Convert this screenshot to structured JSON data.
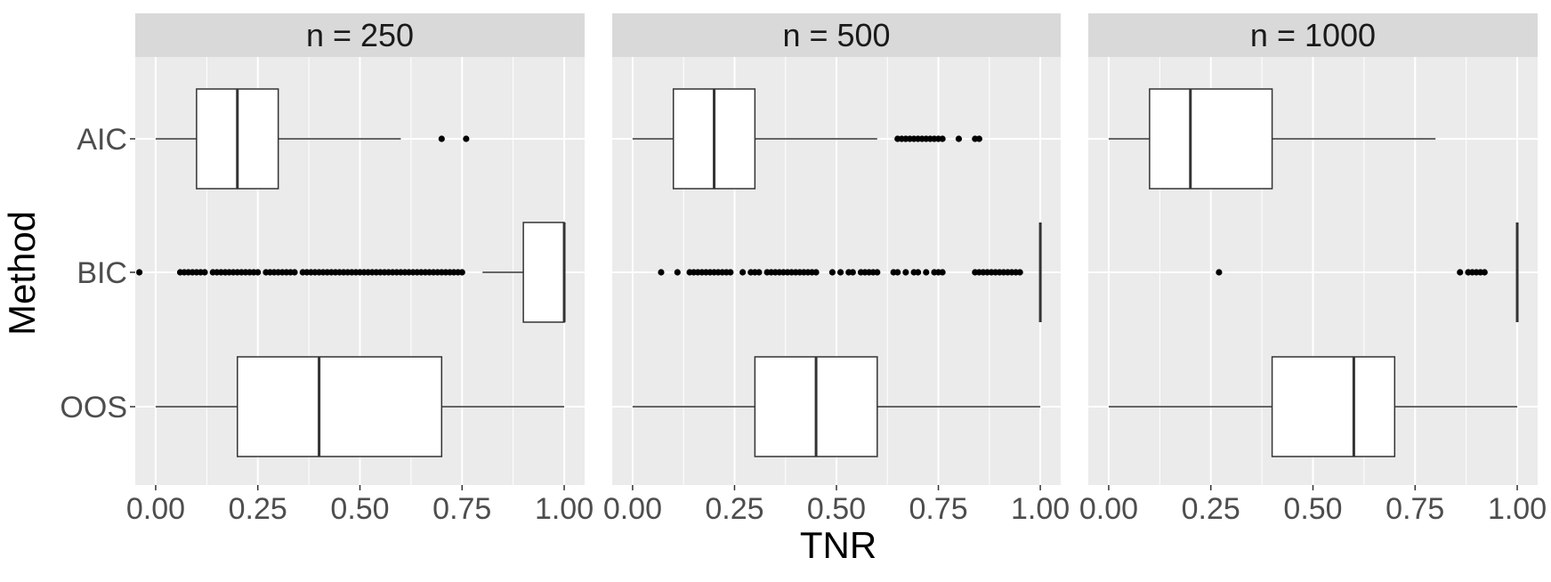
{
  "chart_data": {
    "type": "boxplot",
    "xlabel": "TNR",
    "ylabel": "Method",
    "categories": [
      "AIC",
      "BIC",
      "OOS"
    ],
    "xlim": [
      -0.05,
      1.05
    ],
    "x_ticks": [
      0.0,
      0.25,
      0.5,
      0.75,
      1.0
    ],
    "x_tick_labels": [
      "0.00",
      "0.25",
      "0.50",
      "0.75",
      "1.00"
    ],
    "grid": true,
    "facets": [
      {
        "label": "n = 250",
        "boxes": [
          {
            "method": "AIC",
            "whisker_low": 0.0,
            "q1": 0.1,
            "median": 0.2,
            "q3": 0.3,
            "whisker_high": 0.6,
            "outliers": [
              0.7,
              0.76
            ]
          },
          {
            "method": "BIC",
            "whisker_low": 0.8,
            "q1": 0.9,
            "median": 1.0,
            "q3": 1.0,
            "whisker_high": 1.0,
            "outliers": [
              -0.04,
              0.06,
              0.07,
              0.08,
              0.09,
              0.1,
              0.11,
              0.12,
              0.14,
              0.15,
              0.16,
              0.17,
              0.18,
              0.19,
              0.2,
              0.21,
              0.22,
              0.23,
              0.24,
              0.25,
              0.27,
              0.28,
              0.29,
              0.3,
              0.31,
              0.32,
              0.33,
              0.34,
              0.36,
              0.37,
              0.38,
              0.39,
              0.4,
              0.41,
              0.42,
              0.43,
              0.44,
              0.45,
              0.46,
              0.47,
              0.48,
              0.49,
              0.5,
              0.51,
              0.52,
              0.53,
              0.54,
              0.55,
              0.56,
              0.57,
              0.58,
              0.59,
              0.6,
              0.61,
              0.62,
              0.63,
              0.64,
              0.65,
              0.66,
              0.67,
              0.68,
              0.69,
              0.7,
              0.71,
              0.72,
              0.73,
              0.74,
              0.75
            ]
          },
          {
            "method": "OOS",
            "whisker_low": 0.0,
            "q1": 0.2,
            "median": 0.4,
            "q3": 0.7,
            "whisker_high": 1.0,
            "outliers": []
          }
        ]
      },
      {
        "label": "n = 500",
        "boxes": [
          {
            "method": "AIC",
            "whisker_low": 0.0,
            "q1": 0.1,
            "median": 0.2,
            "q3": 0.3,
            "whisker_high": 0.6,
            "outliers": [
              0.65,
              0.66,
              0.67,
              0.68,
              0.69,
              0.7,
              0.71,
              0.72,
              0.73,
              0.74,
              0.75,
              0.76,
              0.8,
              0.84,
              0.85
            ]
          },
          {
            "method": "BIC",
            "whisker_low": 1.0,
            "q1": 1.0,
            "median": 1.0,
            "q3": 1.0,
            "whisker_high": 1.0,
            "outliers": [
              0.07,
              0.11,
              0.14,
              0.15,
              0.16,
              0.17,
              0.18,
              0.19,
              0.2,
              0.21,
              0.22,
              0.23,
              0.24,
              0.27,
              0.29,
              0.3,
              0.31,
              0.33,
              0.34,
              0.35,
              0.36,
              0.37,
              0.38,
              0.39,
              0.4,
              0.41,
              0.42,
              0.43,
              0.44,
              0.45,
              0.49,
              0.51,
              0.53,
              0.54,
              0.56,
              0.57,
              0.58,
              0.59,
              0.6,
              0.64,
              0.65,
              0.67,
              0.69,
              0.7,
              0.72,
              0.74,
              0.75,
              0.76,
              0.84,
              0.85,
              0.86,
              0.87,
              0.88,
              0.89,
              0.9,
              0.91,
              0.92,
              0.93,
              0.94,
              0.95
            ]
          },
          {
            "method": "OOS",
            "whisker_low": 0.0,
            "q1": 0.3,
            "median": 0.45,
            "q3": 0.6,
            "whisker_high": 1.0,
            "outliers": []
          }
        ]
      },
      {
        "label": "n = 1000",
        "boxes": [
          {
            "method": "AIC",
            "whisker_low": 0.0,
            "q1": 0.1,
            "median": 0.2,
            "q3": 0.4,
            "whisker_high": 0.8,
            "outliers": []
          },
          {
            "method": "BIC",
            "whisker_low": 1.0,
            "q1": 1.0,
            "median": 1.0,
            "q3": 1.0,
            "whisker_high": 1.0,
            "outliers": [
              0.27,
              0.86,
              0.88,
              0.89,
              0.9,
              0.91,
              0.92
            ]
          },
          {
            "method": "OOS",
            "whisker_low": 0.0,
            "q1": 0.4,
            "median": 0.6,
            "q3": 0.7,
            "whisker_high": 1.0,
            "outliers": []
          }
        ]
      }
    ]
  },
  "colors": {
    "panel_background": "#ebebeb",
    "strip_background": "#d9d9d9",
    "grid_line": "#ffffff",
    "box_fill": "#ffffff",
    "box_stroke": "#333333",
    "outlier": "#000000"
  }
}
